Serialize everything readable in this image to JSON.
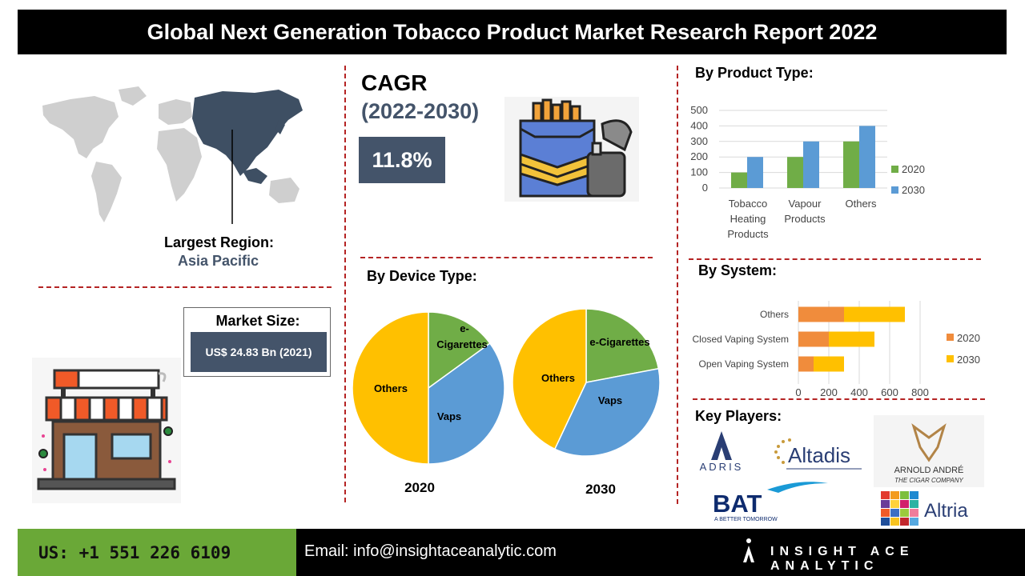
{
  "title": "Global Next Generation Tobacco Product Market Research Report 2022",
  "region": {
    "label": "Largest Region:",
    "value": "Asia Pacific"
  },
  "market_size": {
    "label": "Market Size:",
    "value": "US$ 24.83 Bn (2021)"
  },
  "cagr": {
    "label": "CAGR",
    "period": "(2022-2030)",
    "value": "11.8%"
  },
  "device": {
    "heading": "By Device Type:"
  },
  "product": {
    "heading": "By Product Type:"
  },
  "system": {
    "heading": "By System:"
  },
  "players": {
    "heading": "Key Players:",
    "items": [
      "ADRIS",
      "Altadis",
      "ARNOLD ANDRÉ",
      "THE CIGAR COMPANY",
      "BAT",
      "A BETTER TOMORROW",
      "Altria"
    ]
  },
  "footer": {
    "phone": "US: +1 551 226 6109",
    "email": "Email: info@insightaceanalytic.com",
    "brand": "INSIGHT ACE ANALYTIC"
  },
  "colors": {
    "orange": "#f08c3c",
    "yellow": "#ffc000",
    "green": "#70ad47",
    "blue": "#5b9bd5",
    "slate": "#44546a",
    "dashed": "#b52424"
  },
  "chart_data": [
    {
      "type": "pie",
      "title": "2020",
      "labels": [
        "e-Cigarettes",
        "Vaps",
        "Others"
      ],
      "values": [
        15,
        35,
        50
      ],
      "colors": [
        "#70ad47",
        "#5b9bd5",
        "#ffc000"
      ]
    },
    {
      "type": "pie",
      "title": "2030",
      "labels": [
        "e-Cigarettes",
        "Vaps",
        "Others"
      ],
      "values": [
        22,
        35,
        43
      ],
      "colors": [
        "#70ad47",
        "#5b9bd5",
        "#ffc000"
      ]
    },
    {
      "type": "bar",
      "categories": [
        "Tobacco Heating Products",
        "Vapour Products",
        "Others"
      ],
      "series": [
        {
          "name": "2020",
          "values": [
            100,
            200,
            300
          ],
          "color": "#70ad47"
        },
        {
          "name": "2030",
          "values": [
            200,
            300,
            400
          ],
          "color": "#5b9bd5"
        }
      ],
      "ylim": [
        0,
        500
      ],
      "yticks": [
        0,
        100,
        200,
        300,
        400,
        500
      ],
      "grid": true,
      "legend": "right"
    },
    {
      "type": "bar",
      "orientation": "horizontal",
      "categories": [
        "Open Vaping System",
        "Closed Vaping System",
        "Others"
      ],
      "series": [
        {
          "name": "2020",
          "values": [
            100,
            200,
            300
          ],
          "color": "#f08c3c"
        },
        {
          "name": "2030",
          "values": [
            200,
            300,
            400
          ],
          "color": "#ffc000"
        }
      ],
      "stacked": true,
      "xlim": [
        0,
        800
      ],
      "xticks": [
        0,
        200,
        400,
        600,
        800
      ],
      "grid": true,
      "legend": "right"
    }
  ]
}
